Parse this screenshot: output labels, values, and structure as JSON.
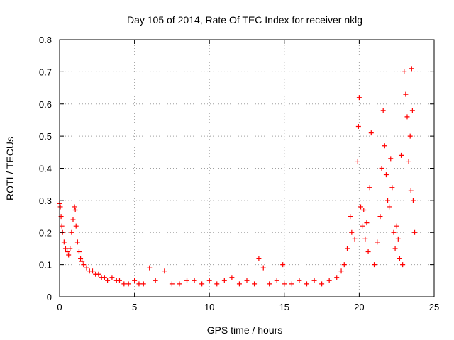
{
  "chart_data": {
    "type": "scatter",
    "title": "Day 105 of 2014, Rate Of TEC Index for receiver nklg",
    "xlabel": "GPS time / hours",
    "ylabel": "ROTI / TECUs",
    "xlim": [
      0,
      25
    ],
    "ylim": [
      0,
      0.8
    ],
    "xticks": [
      0,
      5,
      10,
      15,
      20,
      25
    ],
    "xtick_labels": [
      "0",
      "5",
      "10",
      "15",
      "20",
      "25"
    ],
    "yticks": [
      0,
      0.1,
      0.2,
      0.3,
      0.4,
      0.5,
      0.6,
      0.7,
      0.8
    ],
    "ytick_labels": [
      "0",
      "0.1",
      "0.2",
      "0.3",
      "0.4",
      "0.5",
      "0.6",
      "0.7",
      "0.8"
    ],
    "grid": true,
    "marker": "+",
    "color": "#ff0000",
    "series": [
      {
        "name": "ROTI",
        "x": [
          0.0,
          0.05,
          0.1,
          0.15,
          0.2,
          0.3,
          0.4,
          0.5,
          0.6,
          0.7,
          0.8,
          0.9,
          1.0,
          1.05,
          1.1,
          1.2,
          1.3,
          1.4,
          1.5,
          1.6,
          1.8,
          2.0,
          2.2,
          2.4,
          2.6,
          2.8,
          3.0,
          3.2,
          3.5,
          3.8,
          4.0,
          4.3,
          4.6,
          5.0,
          5.3,
          5.6,
          6.0,
          6.4,
          7.0,
          7.5,
          8.0,
          8.5,
          9.0,
          9.5,
          10.0,
          10.5,
          11.0,
          11.5,
          12.0,
          12.5,
          13.0,
          13.3,
          13.6,
          14.0,
          14.5,
          14.9,
          15.0,
          15.5,
          16.0,
          16.5,
          17.0,
          17.5,
          18.0,
          18.5,
          18.8,
          19.0,
          19.2,
          19.4,
          19.5,
          19.7,
          19.9,
          19.95,
          20.0,
          20.1,
          20.2,
          20.3,
          20.4,
          20.5,
          20.6,
          20.7,
          20.8,
          21.0,
          21.2,
          21.4,
          21.5,
          21.6,
          21.7,
          21.8,
          21.9,
          22.0,
          22.1,
          22.2,
          22.3,
          22.4,
          22.5,
          22.6,
          22.7,
          22.8,
          22.9,
          23.0,
          23.1,
          23.2,
          23.3,
          23.4,
          23.45,
          23.5,
          23.55,
          23.6,
          23.7
        ],
        "y": [
          0.29,
          0.28,
          0.25,
          0.22,
          0.2,
          0.17,
          0.15,
          0.14,
          0.13,
          0.15,
          0.2,
          0.24,
          0.28,
          0.27,
          0.22,
          0.17,
          0.14,
          0.12,
          0.11,
          0.1,
          0.09,
          0.08,
          0.08,
          0.07,
          0.07,
          0.06,
          0.06,
          0.05,
          0.06,
          0.05,
          0.05,
          0.04,
          0.04,
          0.05,
          0.04,
          0.04,
          0.09,
          0.05,
          0.08,
          0.04,
          0.04,
          0.05,
          0.05,
          0.04,
          0.05,
          0.04,
          0.05,
          0.06,
          0.04,
          0.05,
          0.04,
          0.12,
          0.09,
          0.04,
          0.05,
          0.1,
          0.04,
          0.04,
          0.05,
          0.04,
          0.05,
          0.04,
          0.05,
          0.06,
          0.08,
          0.1,
          0.15,
          0.25,
          0.2,
          0.18,
          0.42,
          0.53,
          0.62,
          0.28,
          0.22,
          0.27,
          0.18,
          0.23,
          0.14,
          0.34,
          0.51,
          0.1,
          0.17,
          0.25,
          0.4,
          0.58,
          0.47,
          0.38,
          0.3,
          0.28,
          0.43,
          0.34,
          0.2,
          0.15,
          0.22,
          0.18,
          0.12,
          0.44,
          0.1,
          0.7,
          0.63,
          0.56,
          0.42,
          0.5,
          0.33,
          0.71,
          0.58,
          0.3,
          0.2
        ]
      }
    ]
  }
}
